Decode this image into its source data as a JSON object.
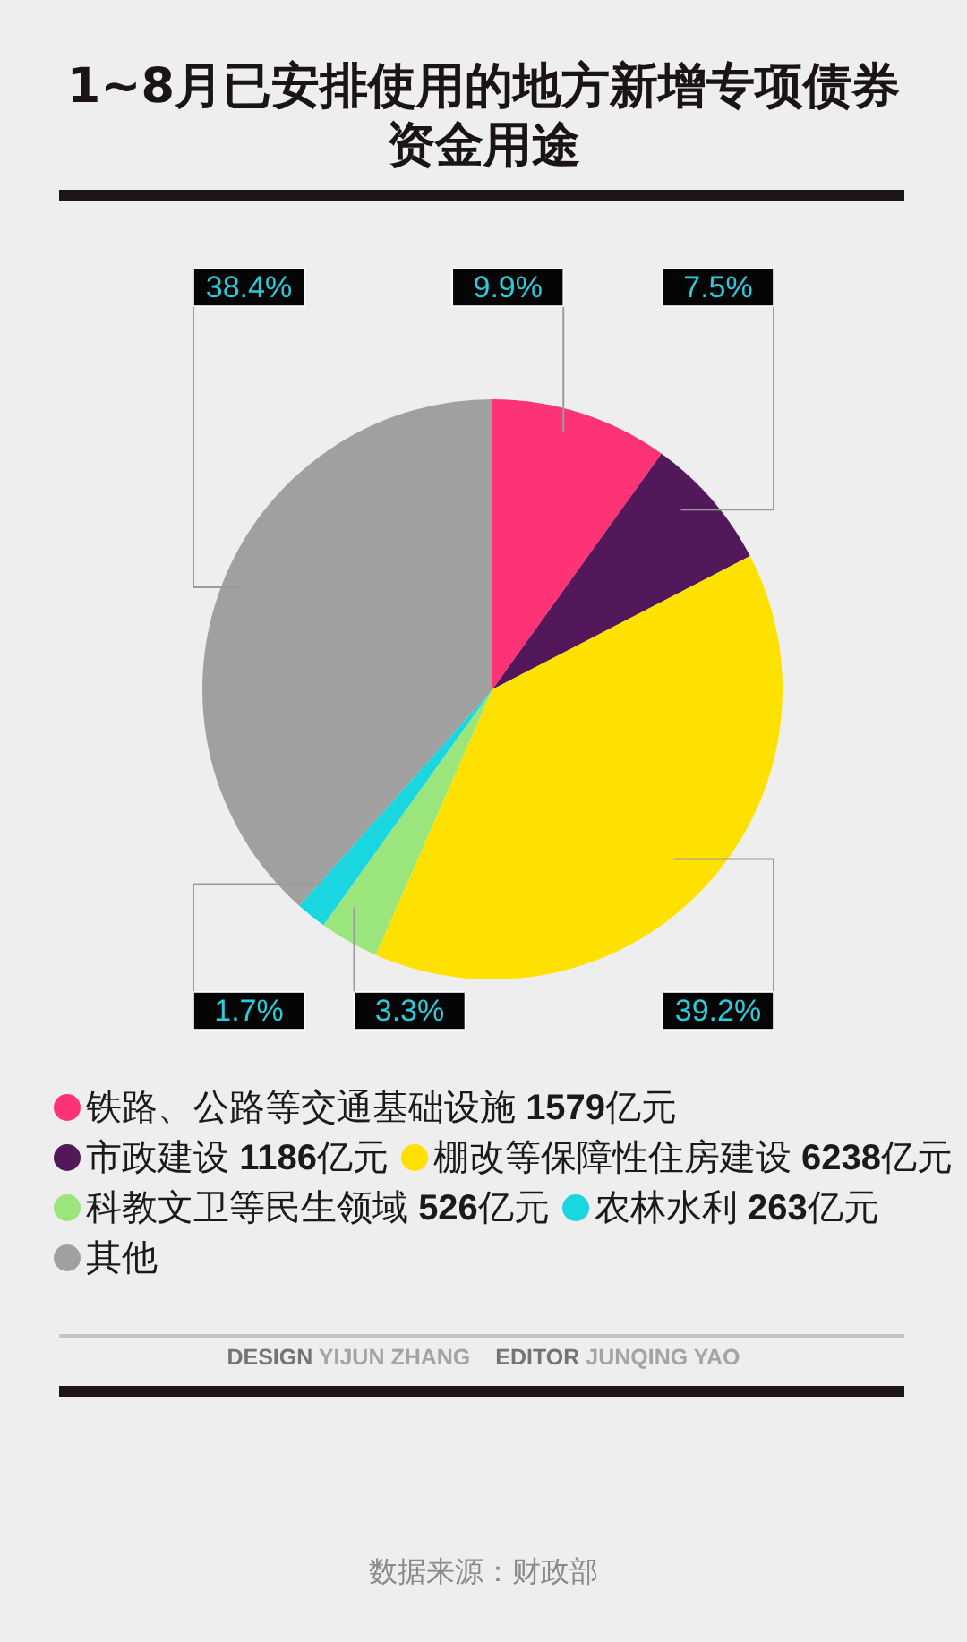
{
  "chart_data": {
    "type": "pie",
    "title": "1~8月已安排使用的地方新增专项债券资金用途",
    "categories": [
      "铁路、公路等交通基础设施 1579亿元",
      "市政建设 1186亿元",
      "棚改等保障性住房建设 6238亿元",
      "科教文卫等民生领域 526亿元",
      "农林水利 263亿元",
      "其他"
    ],
    "values": [
      9.9,
      7.5,
      39.2,
      3.3,
      1.7,
      38.4
    ],
    "colors": [
      "#fe3375",
      "#52185a",
      "#ffe100",
      "#9be67c",
      "#1ad6e0",
      "#a1a0a0"
    ],
    "value_labels": [
      "9.9%",
      "7.5%",
      "39.2%",
      "3.3%",
      "1.7%",
      "38.4%"
    ],
    "legend": "bottom",
    "annotations": [
      "DESIGN YIJUN ZHANG",
      "EDITOR JUNQING YAO",
      "数据来源：财政部"
    ]
  }
}
